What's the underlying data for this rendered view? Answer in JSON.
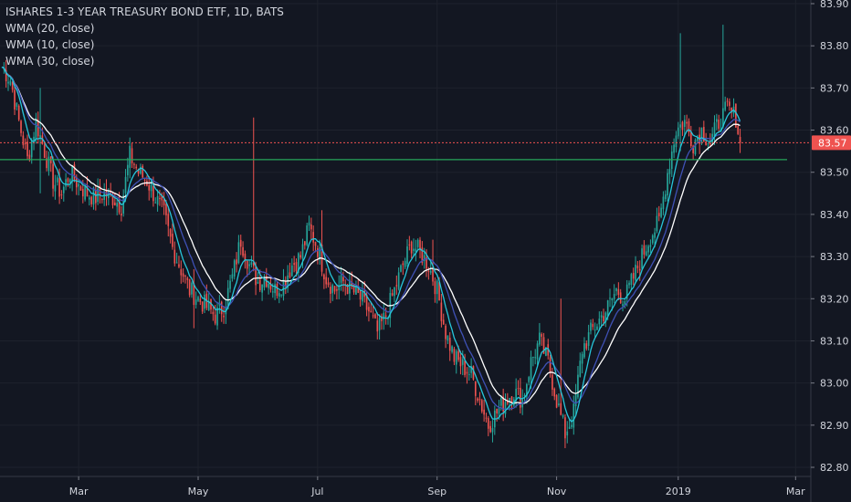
{
  "chart_data": {
    "type": "candlestick",
    "title": "ISHARES 1-3 YEAR TREASURY BOND ETF, 1D, BATS",
    "indicators": [
      "WMA (20, close)",
      "WMA (10, close)",
      "WMA (30, close)"
    ],
    "last_price": "83.57",
    "last_price_value": 83.57,
    "support_line_value": 83.53,
    "ylim": [
      82.79,
      83.9
    ],
    "y_ticks": [
      {
        "value": 83.9,
        "label": "83.90"
      },
      {
        "value": 83.8,
        "label": "83.80"
      },
      {
        "value": 83.7,
        "label": "83.70"
      },
      {
        "value": 83.6,
        "label": "83.60"
      },
      {
        "value": 83.5,
        "label": "83.50"
      },
      {
        "value": 83.4,
        "label": "83.40"
      },
      {
        "value": 83.3,
        "label": "83.30"
      },
      {
        "value": 83.2,
        "label": "83.20"
      },
      {
        "value": 83.1,
        "label": "83.10"
      },
      {
        "value": 83.0,
        "label": "83.00"
      },
      {
        "value": 82.9,
        "label": "82.90"
      },
      {
        "value": 82.8,
        "label": "82.80"
      }
    ],
    "x_ticks": [
      {
        "day": 36,
        "label": "Mar"
      },
      {
        "day": 92,
        "label": "May"
      },
      {
        "day": 148,
        "label": "Jul"
      },
      {
        "day": 204,
        "label": "Sep"
      },
      {
        "day": 260,
        "label": "Nov"
      },
      {
        "day": 317,
        "label": "2019"
      },
      {
        "day": 372,
        "label": "Mar"
      }
    ],
    "xlim": [
      0,
      380
    ],
    "anchors": [
      [
        0,
        83.75
      ],
      [
        4,
        83.72
      ],
      [
        8,
        83.62
      ],
      [
        12,
        83.53
      ],
      [
        16,
        83.62
      ],
      [
        20,
        83.55
      ],
      [
        24,
        83.48
      ],
      [
        28,
        83.45
      ],
      [
        32,
        83.5
      ],
      [
        36,
        83.47
      ],
      [
        40,
        83.45
      ],
      [
        44,
        83.44
      ],
      [
        48,
        83.45
      ],
      [
        52,
        83.44
      ],
      [
        56,
        83.42
      ],
      [
        60,
        83.54
      ],
      [
        64,
        83.5
      ],
      [
        68,
        83.48
      ],
      [
        72,
        83.44
      ],
      [
        76,
        83.4
      ],
      [
        80,
        83.32
      ],
      [
        84,
        83.27
      ],
      [
        88,
        83.22
      ],
      [
        92,
        83.2
      ],
      [
        96,
        83.18
      ],
      [
        100,
        83.16
      ],
      [
        104,
        83.18
      ],
      [
        108,
        83.25
      ],
      [
        112,
        83.34
      ],
      [
        116,
        83.28
      ],
      [
        120,
        83.24
      ],
      [
        124,
        83.25
      ],
      [
        128,
        83.22
      ],
      [
        132,
        83.24
      ],
      [
        136,
        83.28
      ],
      [
        140,
        83.3
      ],
      [
        144,
        83.37
      ],
      [
        148,
        83.32
      ],
      [
        152,
        83.25
      ],
      [
        156,
        83.22
      ],
      [
        160,
        83.24
      ],
      [
        164,
        83.22
      ],
      [
        168,
        83.2
      ],
      [
        172,
        83.17
      ],
      [
        176,
        83.12
      ],
      [
        180,
        83.16
      ],
      [
        184,
        83.22
      ],
      [
        188,
        83.28
      ],
      [
        192,
        83.33
      ],
      [
        196,
        83.31
      ],
      [
        200,
        83.28
      ],
      [
        204,
        83.22
      ],
      [
        208,
        83.12
      ],
      [
        212,
        83.06
      ],
      [
        216,
        83.04
      ],
      [
        220,
        83.02
      ],
      [
        224,
        82.96
      ],
      [
        228,
        82.9
      ],
      [
        232,
        82.93
      ],
      [
        236,
        82.96
      ],
      [
        240,
        82.98
      ],
      [
        244,
        82.96
      ],
      [
        248,
        83.05
      ],
      [
        252,
        83.1
      ],
      [
        256,
        83.05
      ],
      [
        260,
        82.96
      ],
      [
        264,
        82.88
      ],
      [
        268,
        82.93
      ],
      [
        272,
        83.08
      ],
      [
        276,
        83.12
      ],
      [
        280,
        83.15
      ],
      [
        284,
        83.18
      ],
      [
        288,
        83.22
      ],
      [
        292,
        83.2
      ],
      [
        296,
        83.25
      ],
      [
        300,
        83.3
      ],
      [
        304,
        83.35
      ],
      [
        308,
        83.38
      ],
      [
        312,
        83.5
      ],
      [
        316,
        83.6
      ],
      [
        320,
        83.62
      ],
      [
        324,
        83.57
      ],
      [
        328,
        83.6
      ],
      [
        332,
        83.57
      ],
      [
        336,
        83.62
      ],
      [
        340,
        83.65
      ],
      [
        344,
        83.63
      ],
      [
        346,
        83.57
      ]
    ],
    "spikes": [
      {
        "day": 18,
        "high": 83.7,
        "low": 83.45
      },
      {
        "day": 90,
        "high": 83.27,
        "low": 83.13
      },
      {
        "day": 118,
        "high": 83.63,
        "low": 83.43
      },
      {
        "day": 150,
        "high": 83.41,
        "low": 83.3
      },
      {
        "day": 202,
        "high": 83.34,
        "low": 83.26
      },
      {
        "day": 262,
        "high": 83.2,
        "low": 83.05
      },
      {
        "day": 318,
        "high": 83.83,
        "low": 83.55
      },
      {
        "day": 338,
        "high": 83.85,
        "low": 83.68
      }
    ]
  }
}
